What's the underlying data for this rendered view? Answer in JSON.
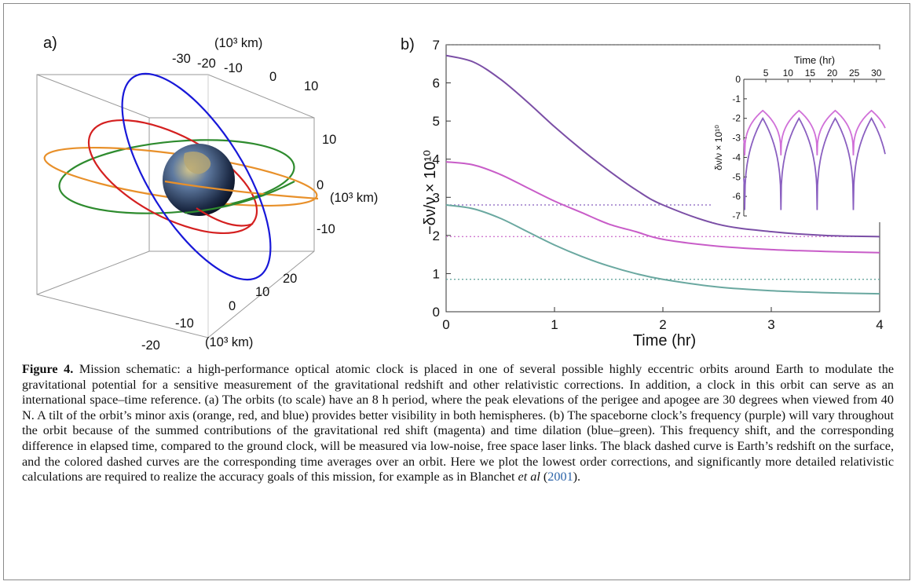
{
  "panel_a": {
    "label": "a)",
    "axis_top_ticks": [
      "-30",
      "-20",
      "-10",
      "0",
      "10"
    ],
    "axis_top_unit": "(10³ km)",
    "axis_right_ticks": [
      "10",
      "0",
      "-10"
    ],
    "axis_right_unit": "(10³ km)",
    "axis_front_ticks": [
      "20",
      "10",
      "0",
      "-10",
      "-20"
    ],
    "axis_front_unit": "(10³ km)",
    "orbit_colors": {
      "orange": "#e8902a",
      "red": "#d42020",
      "blue": "#1818d8",
      "green": "#2e8b2e"
    }
  },
  "panel_b": {
    "label": "b)",
    "chart_data": {
      "type": "line",
      "xlabel": "Time (hr)",
      "ylabel": "−δν/ν × 10¹⁰",
      "xlim": [
        0,
        4
      ],
      "ylim": [
        0,
        7
      ],
      "x_ticks": [
        "0",
        "1",
        "2",
        "3",
        "4"
      ],
      "y_ticks": [
        "0",
        "1",
        "2",
        "3",
        "4",
        "5",
        "6",
        "7"
      ],
      "series": [
        {
          "color": "#7b4fa6",
          "x": [
            0,
            0.25,
            0.5,
            0.75,
            1,
            1.25,
            1.5,
            1.75,
            2,
            2.5,
            3,
            3.5,
            4
          ],
          "y": [
            6.72,
            6.55,
            6.1,
            5.5,
            4.85,
            4.25,
            3.7,
            3.2,
            2.8,
            2.3,
            2.1,
            2.0,
            1.97
          ]
        },
        {
          "color": "#c85cc8",
          "x": [
            0,
            0.25,
            0.5,
            0.75,
            1,
            1.25,
            1.5,
            1.75,
            2,
            2.5,
            3,
            3.5,
            4
          ],
          "y": [
            3.93,
            3.85,
            3.6,
            3.25,
            2.9,
            2.6,
            2.3,
            2.1,
            1.9,
            1.72,
            1.63,
            1.58,
            1.55
          ]
        },
        {
          "color": "#6aa8a0",
          "x": [
            0,
            0.25,
            0.5,
            0.75,
            1,
            1.25,
            1.5,
            1.75,
            2,
            2.5,
            3,
            3.5,
            4
          ],
          "y": [
            2.8,
            2.7,
            2.45,
            2.1,
            1.75,
            1.45,
            1.2,
            1.0,
            0.85,
            0.65,
            0.55,
            0.5,
            0.47
          ]
        }
      ],
      "dashed_lines": [
        {
          "color": "#808080",
          "y": 7.0
        },
        {
          "color": "#9a7ac8",
          "y": 2.8
        },
        {
          "color": "#d07ad0",
          "y": 1.97
        },
        {
          "color": "#6aa8a0",
          "y": 0.85
        }
      ]
    },
    "inset": {
      "xlabel": "Time (hr)",
      "ylabel": "δν/ν × 10¹⁰",
      "xlim": [
        0,
        32
      ],
      "ylim": [
        -7,
        0
      ],
      "x_ticks": [
        "5",
        "10",
        "15",
        "20",
        "25",
        "30"
      ],
      "y_ticks": [
        "0",
        "-1",
        "-2",
        "-3",
        "-4",
        "-5",
        "-6",
        "-7"
      ],
      "series": [
        {
          "color": "#8a5fc0",
          "min": -6.7,
          "max": -2.0
        },
        {
          "color": "#d070d8",
          "min": -3.9,
          "max": -1.6
        }
      ]
    }
  },
  "caption": {
    "title": "Figure 4.",
    "body": "Mission schematic: a high-performance optical atomic clock is placed in one of several possible highly eccentric orbits around Earth to modulate the gravitational potential for a sensitive measurement of the gravitational redshift and other relativistic corrections. In addition, a clock in this orbit can serve as an international space–time reference. (a) The orbits (to scale) have an 8 h period, where the peak elevations of the perigee and apogee are 30 degrees when viewed from 40 N. A tilt of the orbit’s minor axis (orange, red, and blue) provides better visibility in both hemispheres. (b) The spaceborne clock’s frequency (purple) will vary throughout the orbit because of the summed contributions of the gravitational red shift (magenta) and time dilation (blue–green). This frequency shift, and the corresponding difference in elapsed time, compared to the ground clock, will be measured via low-noise, free space laser links. The black dashed curve is Earth’s redshift on the surface, and the colored dashed curves are the corresponding time averages over an orbit. Here we plot the lowest order corrections, and significantly more detailed relativistic calculations are required to realize the accuracy goals of this mission, for example as in Blanchet",
    "etal": "et al",
    "year_open": "(",
    "year": "2001",
    "year_close": ")."
  }
}
